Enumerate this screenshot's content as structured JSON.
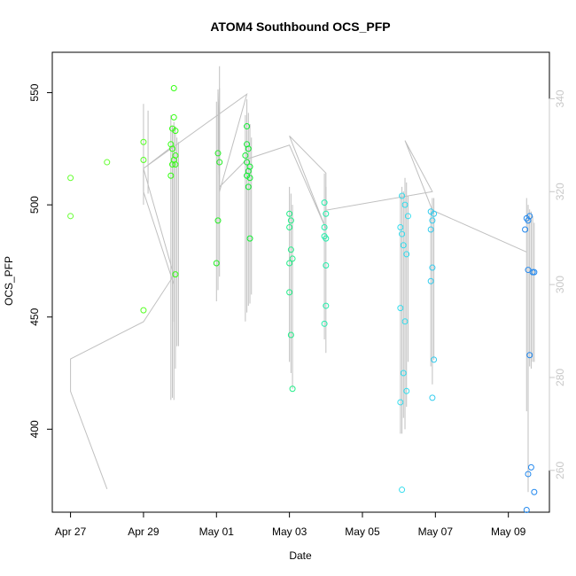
{
  "chart_data": {
    "type": "scatter",
    "title": "ATOM4 Southbound OCS_PFP",
    "xlabel": "Date",
    "ylabel": "OCS_PFP",
    "x_ticks": [
      "Apr 27",
      "Apr 29",
      "May 01",
      "May 03",
      "May 05",
      "May 07",
      "May 09"
    ],
    "y_ticks": [
      400,
      450,
      500,
      550
    ],
    "y2_ticks": [
      260,
      280,
      300,
      320,
      340
    ],
    "xlim": [
      "2018-04-26T12:00",
      "2018-05-10T03:00"
    ],
    "ylim": [
      363,
      568
    ],
    "y2lim": [
      251,
      350
    ],
    "grid": false,
    "legend": "none",
    "colors": {
      "axis": "#000000",
      "secondary_axis": "#c8c8c8",
      "line": "#c0c0c0"
    },
    "series": [
      {
        "values": [
          {
            "x": "2018-04-27T00:00",
            "y": 512,
            "c": "#66ff33"
          },
          {
            "x": "2018-04-27T00:00",
            "y": 495,
            "c": "#66ff33"
          },
          {
            "x": "2018-04-28T00:00",
            "y": 519,
            "c": "#66ff33"
          },
          {
            "x": "2018-04-29T00:00",
            "y": 528,
            "c": "#55ff22"
          },
          {
            "x": "2018-04-29T00:00",
            "y": 520,
            "c": "#55ff22"
          },
          {
            "x": "2018-04-29T00:00",
            "y": 453,
            "c": "#55ff22"
          },
          {
            "x": "2018-04-29T20:00",
            "y": 552,
            "c": "#33ff11"
          },
          {
            "x": "2018-04-29T20:00",
            "y": 539,
            "c": "#33ff11"
          },
          {
            "x": "2018-04-29T19:00",
            "y": 534,
            "c": "#33ff11"
          },
          {
            "x": "2018-04-29T21:00",
            "y": 533,
            "c": "#33ff11"
          },
          {
            "x": "2018-04-29T18:00",
            "y": 527,
            "c": "#33ff11"
          },
          {
            "x": "2018-04-29T19:00",
            "y": 525,
            "c": "#33ff11"
          },
          {
            "x": "2018-04-29T21:00",
            "y": 522,
            "c": "#33ff11"
          },
          {
            "x": "2018-04-29T20:00",
            "y": 520,
            "c": "#33ff11"
          },
          {
            "x": "2018-04-29T19:00",
            "y": 518,
            "c": "#33ff11"
          },
          {
            "x": "2018-04-29T21:00",
            "y": 518,
            "c": "#33ff11"
          },
          {
            "x": "2018-04-29T18:00",
            "y": 513,
            "c": "#33ff11"
          },
          {
            "x": "2018-04-29T21:00",
            "y": 469,
            "c": "#33ff11"
          },
          {
            "x": "2018-05-01T01:00",
            "y": 523,
            "c": "#22ee22"
          },
          {
            "x": "2018-05-01T02:00",
            "y": 519,
            "c": "#22ee22"
          },
          {
            "x": "2018-05-01T01:00",
            "y": 493,
            "c": "#22ee22"
          },
          {
            "x": "2018-05-01T00:00",
            "y": 474,
            "c": "#22ee22"
          },
          {
            "x": "2018-05-01T20:00",
            "y": 535,
            "c": "#11ee33"
          },
          {
            "x": "2018-05-01T20:00",
            "y": 527,
            "c": "#11ee33"
          },
          {
            "x": "2018-05-01T21:00",
            "y": 525,
            "c": "#11ee33"
          },
          {
            "x": "2018-05-01T19:00",
            "y": 522,
            "c": "#11ee33"
          },
          {
            "x": "2018-05-01T20:00",
            "y": 519,
            "c": "#11ee33"
          },
          {
            "x": "2018-05-01T22:00",
            "y": 517,
            "c": "#11ee33"
          },
          {
            "x": "2018-05-01T21:00",
            "y": 515,
            "c": "#11ee33"
          },
          {
            "x": "2018-05-01T20:00",
            "y": 513,
            "c": "#11ee33"
          },
          {
            "x": "2018-05-01T22:00",
            "y": 512,
            "c": "#11ee33"
          },
          {
            "x": "2018-05-01T21:00",
            "y": 508,
            "c": "#11ee33"
          },
          {
            "x": "2018-05-01T22:00",
            "y": 485,
            "c": "#11ee33"
          },
          {
            "x": "2018-05-03T00:00",
            "y": 496,
            "c": "#22ee88"
          },
          {
            "x": "2018-05-03T01:00",
            "y": 493,
            "c": "#22ee88"
          },
          {
            "x": "2018-05-03T00:00",
            "y": 490,
            "c": "#22ee88"
          },
          {
            "x": "2018-05-03T01:00",
            "y": 480,
            "c": "#22ee88"
          },
          {
            "x": "2018-05-03T02:00",
            "y": 476,
            "c": "#22ee88"
          },
          {
            "x": "2018-05-03T00:00",
            "y": 474,
            "c": "#22ee88"
          },
          {
            "x": "2018-05-03T00:00",
            "y": 461,
            "c": "#22ee88"
          },
          {
            "x": "2018-05-03T01:00",
            "y": 442,
            "c": "#22ee88"
          },
          {
            "x": "2018-05-03T02:00",
            "y": 418,
            "c": "#22ee88"
          },
          {
            "x": "2018-05-03T23:00",
            "y": 501,
            "c": "#22eeaa"
          },
          {
            "x": "2018-05-04T00:00",
            "y": 496,
            "c": "#22eeaa"
          },
          {
            "x": "2018-05-03T23:00",
            "y": 490,
            "c": "#22eeaa"
          },
          {
            "x": "2018-05-03T23:00",
            "y": 486,
            "c": "#22eeaa"
          },
          {
            "x": "2018-05-04T00:00",
            "y": 485,
            "c": "#22eeaa"
          },
          {
            "x": "2018-05-04T00:00",
            "y": 473,
            "c": "#22eeaa"
          },
          {
            "x": "2018-05-04T00:00",
            "y": 455,
            "c": "#22eeaa"
          },
          {
            "x": "2018-05-03T23:00",
            "y": 447,
            "c": "#22eeaa"
          },
          {
            "x": "2018-05-06T02:00",
            "y": 504,
            "c": "#33ddee"
          },
          {
            "x": "2018-05-06T04:00",
            "y": 500,
            "c": "#33ddee"
          },
          {
            "x": "2018-05-06T06:00",
            "y": 495,
            "c": "#33ddee"
          },
          {
            "x": "2018-05-06T01:00",
            "y": 490,
            "c": "#33ddee"
          },
          {
            "x": "2018-05-06T02:00",
            "y": 487,
            "c": "#33ddee"
          },
          {
            "x": "2018-05-06T03:00",
            "y": 482,
            "c": "#33ddee"
          },
          {
            "x": "2018-05-06T05:00",
            "y": 478,
            "c": "#33ddee"
          },
          {
            "x": "2018-05-06T01:00",
            "y": 454,
            "c": "#33ddee"
          },
          {
            "x": "2018-05-06T04:00",
            "y": 448,
            "c": "#33ddee"
          },
          {
            "x": "2018-05-06T03:00",
            "y": 425,
            "c": "#33ddee"
          },
          {
            "x": "2018-05-06T05:00",
            "y": 417,
            "c": "#33ddee"
          },
          {
            "x": "2018-05-06T01:00",
            "y": 412,
            "c": "#33ddee"
          },
          {
            "x": "2018-05-06T02:00",
            "y": 373,
            "c": "#33ddee"
          },
          {
            "x": "2018-05-06T21:00",
            "y": 497,
            "c": "#33ccee"
          },
          {
            "x": "2018-05-06T23:00",
            "y": 496,
            "c": "#33ccee"
          },
          {
            "x": "2018-05-06T22:00",
            "y": 493,
            "c": "#33ccee"
          },
          {
            "x": "2018-05-06T21:00",
            "y": 489,
            "c": "#33ccee"
          },
          {
            "x": "2018-05-06T22:00",
            "y": 472,
            "c": "#33ccee"
          },
          {
            "x": "2018-05-06T21:00",
            "y": 466,
            "c": "#33ccee"
          },
          {
            "x": "2018-05-06T23:00",
            "y": 431,
            "c": "#33ccee"
          },
          {
            "x": "2018-05-06T22:00",
            "y": 414,
            "c": "#33ccee"
          },
          {
            "x": "2018-05-09T12:00",
            "y": 494,
            "c": "#2288ee"
          },
          {
            "x": "2018-05-09T14:00",
            "y": 495,
            "c": "#2288ee"
          },
          {
            "x": "2018-05-09T13:00",
            "y": 493,
            "c": "#2288ee"
          },
          {
            "x": "2018-05-09T11:00",
            "y": 489,
            "c": "#2288ee"
          },
          {
            "x": "2018-05-09T13:00",
            "y": 471,
            "c": "#2288ee"
          },
          {
            "x": "2018-05-09T17:00",
            "y": 470,
            "c": "#2288ee"
          },
          {
            "x": "2018-05-09T16:00",
            "y": 470,
            "c": "#2288ee"
          },
          {
            "x": "2018-05-09T14:00",
            "y": 433,
            "c": "#2288ee"
          },
          {
            "x": "2018-05-09T15:00",
            "y": 383,
            "c": "#2288ee"
          },
          {
            "x": "2018-05-09T13:00",
            "y": 380,
            "c": "#2288ee"
          },
          {
            "x": "2018-05-09T17:00",
            "y": 372,
            "c": "#2288ee"
          },
          {
            "x": "2018-05-09T12:00",
            "y": 364,
            "c": "#2288ee"
          }
        ]
      },
      {
        "axis": "right",
        "style": "line",
        "values": [
          {
            "x": "2018-04-28T00:00",
            "y": 256
          },
          {
            "x": "2018-04-27T00:00",
            "y": 277
          },
          {
            "x": "2018-04-27T00:00",
            "y": 284
          },
          {
            "x": "2018-04-29T00:00",
            "y": 292
          },
          {
            "x": "2018-04-29T20:00",
            "y": 302
          },
          {
            "x": "2018-04-29T00:00",
            "y": 325
          },
          {
            "x": "2018-04-29T00:00",
            "y": 320
          },
          {
            "x": "2018-04-29T20:00",
            "y": 300
          },
          {
            "x": "2018-04-29T20:00",
            "y": 292
          },
          {
            "x": "2018-04-29T20:00",
            "y": 330
          },
          {
            "x": "2018-04-29T00:00",
            "y": 325
          },
          {
            "x": "2018-05-01T20:00",
            "y": 341
          },
          {
            "x": "2018-05-01T02:00",
            "y": 320
          },
          {
            "x": "2018-05-01T02:00",
            "y": 347
          },
          {
            "x": "2018-05-01T02:00",
            "y": 330
          },
          {
            "x": "2018-05-01T01:00",
            "y": 342
          },
          {
            "x": "2018-05-01T02:00",
            "y": 321
          },
          {
            "x": "2018-05-01T20:00",
            "y": 327
          },
          {
            "x": "2018-05-03T00:00",
            "y": 330
          },
          {
            "x": "2018-05-04T00:00",
            "y": 312
          },
          {
            "x": "2018-05-03T00:00",
            "y": 332
          },
          {
            "x": "2018-05-04T00:00",
            "y": 324
          },
          {
            "x": "2018-05-04T00:00",
            "y": 316
          },
          {
            "x": "2018-05-06T22:00",
            "y": 320
          },
          {
            "x": "2018-05-06T04:00",
            "y": 331
          },
          {
            "x": "2018-05-06T22:00",
            "y": 316
          },
          {
            "x": "2018-05-09T12:00",
            "y": 307
          }
        ]
      }
    ],
    "spikes": [
      {
        "x": "2018-04-29T00:00",
        "y_top": 545,
        "y_bottom": 500
      },
      {
        "x": "2018-04-29T03:00",
        "y_top": 542,
        "y_bottom": 505
      },
      {
        "x": "2018-04-29T18:00",
        "y_top": 540,
        "y_bottom": 413
      },
      {
        "x": "2018-04-29T19:00",
        "y_top": 535,
        "y_bottom": 414
      },
      {
        "x": "2018-04-29T20:00",
        "y_top": 537,
        "y_bottom": 413
      },
      {
        "x": "2018-04-29T21:00",
        "y_top": 535,
        "y_bottom": 427
      },
      {
        "x": "2018-04-29T22:00",
        "y_top": 530,
        "y_bottom": 437
      },
      {
        "x": "2018-04-29T23:00",
        "y_top": 528,
        "y_bottom": 437
      },
      {
        "x": "2018-05-01T00:00",
        "y_top": 546,
        "y_bottom": 457
      },
      {
        "x": "2018-05-01T01:00",
        "y_top": 550,
        "y_bottom": 462
      },
      {
        "x": "2018-05-01T02:00",
        "y_top": 552,
        "y_bottom": 468
      },
      {
        "x": "2018-05-01T19:00",
        "y_top": 540,
        "y_bottom": 448
      },
      {
        "x": "2018-05-01T20:00",
        "y_top": 547,
        "y_bottom": 452
      },
      {
        "x": "2018-05-01T21:00",
        "y_top": 541,
        "y_bottom": 455
      },
      {
        "x": "2018-05-01T22:00",
        "y_top": 536,
        "y_bottom": 456
      },
      {
        "x": "2018-05-01T23:00",
        "y_top": 530,
        "y_bottom": 460
      },
      {
        "x": "2018-05-03T00:00",
        "y_top": 508,
        "y_bottom": 430
      },
      {
        "x": "2018-05-03T01:00",
        "y_top": 505,
        "y_bottom": 425
      },
      {
        "x": "2018-05-03T02:00",
        "y_top": 500,
        "y_bottom": 418
      },
      {
        "x": "2018-05-03T23:00",
        "y_top": 514,
        "y_bottom": 440
      },
      {
        "x": "2018-05-04T00:00",
        "y_top": 508,
        "y_bottom": 434
      },
      {
        "x": "2018-05-06T01:00",
        "y_top": 505,
        "y_bottom": 398
      },
      {
        "x": "2018-05-06T02:00",
        "y_top": 508,
        "y_bottom": 398
      },
      {
        "x": "2018-05-06T03:00",
        "y_top": 506,
        "y_bottom": 405
      },
      {
        "x": "2018-05-06T04:00",
        "y_top": 512,
        "y_bottom": 400
      },
      {
        "x": "2018-05-06T05:00",
        "y_top": 510,
        "y_bottom": 410
      },
      {
        "x": "2018-05-06T06:00",
        "y_top": 504,
        "y_bottom": 430
      },
      {
        "x": "2018-05-06T21:00",
        "y_top": 498,
        "y_bottom": 428
      },
      {
        "x": "2018-05-06T22:00",
        "y_top": 503,
        "y_bottom": 420
      },
      {
        "x": "2018-05-06T23:00",
        "y_top": 503,
        "y_bottom": 431
      },
      {
        "x": "2018-05-09T12:00",
        "y_top": 503,
        "y_bottom": 408
      },
      {
        "x": "2018-05-09T13:00",
        "y_top": 500,
        "y_bottom": 372
      },
      {
        "x": "2018-05-09T14:00",
        "y_top": 498,
        "y_bottom": 428
      },
      {
        "x": "2018-05-09T15:00",
        "y_top": 497,
        "y_bottom": 427
      },
      {
        "x": "2018-05-09T16:00",
        "y_top": 495,
        "y_bottom": 430
      },
      {
        "x": "2018-05-09T17:00",
        "y_top": 492,
        "y_bottom": 430
      }
    ]
  }
}
